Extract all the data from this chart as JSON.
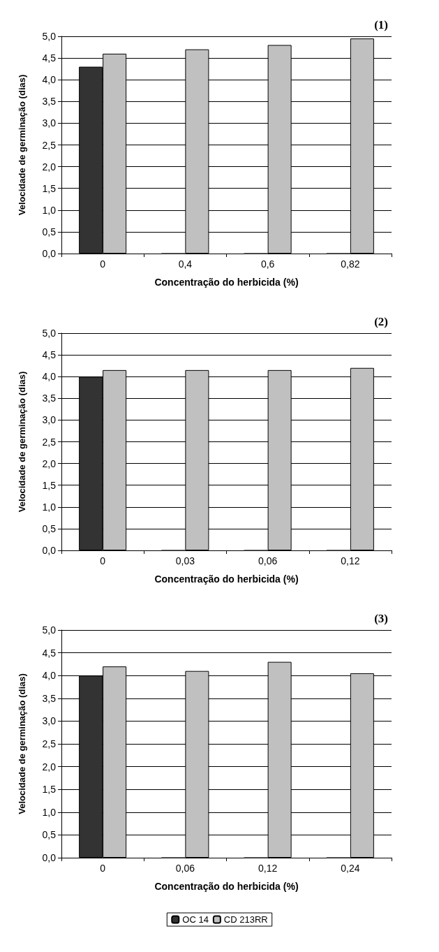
{
  "chart_data": [
    {
      "type": "bar",
      "title": "(1)",
      "xlabel": "Concentração do herbicida (%)",
      "ylabel": "Velocidade de germinação (dias)",
      "categories": [
        "0",
        "0,4",
        "0,6",
        "0,82"
      ],
      "series": [
        {
          "color": "#333333",
          "values": [
            4.3,
            0,
            0,
            0
          ]
        },
        {
          "color": "#c0c0c0",
          "values": [
            4.6,
            4.7,
            4.8,
            4.95
          ]
        }
      ],
      "ylim": [
        0,
        5
      ],
      "yticks": [
        {
          "value": 0,
          "label": "0,0"
        },
        {
          "value": 0.5,
          "label": "0,5"
        },
        {
          "value": 1,
          "label": "1,0"
        },
        {
          "value": 1.5,
          "label": "1,5"
        },
        {
          "value": 2,
          "label": "2,0"
        },
        {
          "value": 2.5,
          "label": "2,5"
        },
        {
          "value": 3,
          "label": "3,0"
        },
        {
          "value": 3.5,
          "label": "3,5"
        },
        {
          "value": 4,
          "label": "4,0"
        },
        {
          "value": 4.5,
          "label": "4,5"
        },
        {
          "value": 5,
          "label": "5,0"
        }
      ],
      "grid": "y",
      "legend": false
    },
    {
      "type": "bar",
      "title": "(2)",
      "xlabel": "Concentração do herbicida (%)",
      "ylabel": "Velocidade de germinação (dias)",
      "categories": [
        "0",
        "0,03",
        "0,06",
        "0,12"
      ],
      "series": [
        {
          "color": "#333333",
          "values": [
            4.0,
            0,
            0,
            0
          ]
        },
        {
          "color": "#c0c0c0",
          "values": [
            4.15,
            4.15,
            4.15,
            4.2
          ]
        }
      ],
      "ylim": [
        0,
        5
      ],
      "yticks": [
        {
          "value": 0,
          "label": "0,0"
        },
        {
          "value": 0.5,
          "label": "0,5"
        },
        {
          "value": 1,
          "label": "1,0"
        },
        {
          "value": 1.5,
          "label": "1,5"
        },
        {
          "value": 2,
          "label": "2,0"
        },
        {
          "value": 2.5,
          "label": "2,5"
        },
        {
          "value": 3,
          "label": "3,0"
        },
        {
          "value": 3.5,
          "label": "3,5"
        },
        {
          "value": 4,
          "label": "4,0"
        },
        {
          "value": 4.5,
          "label": "4,5"
        },
        {
          "value": 5,
          "label": "5,0"
        }
      ],
      "grid": "y",
      "legend": false
    },
    {
      "type": "bar",
      "title": "(3)",
      "xlabel": "Concentração do herbicida (%)",
      "ylabel": "Velocidade de germinação (dias)",
      "categories": [
        "0",
        "0,06",
        "0,12",
        "0,24"
      ],
      "series": [
        {
          "name": "OC 14",
          "color": "#333333",
          "values": [
            4.0,
            0,
            0,
            0
          ]
        },
        {
          "name": "CD 213RR",
          "color": "#c0c0c0",
          "values": [
            4.2,
            4.1,
            4.3,
            4.05
          ]
        }
      ],
      "ylim": [
        0,
        5
      ],
      "yticks": [
        {
          "value": 0,
          "label": "0,0"
        },
        {
          "value": 0.5,
          "label": "0,5"
        },
        {
          "value": 1,
          "label": "1,0"
        },
        {
          "value": 1.5,
          "label": "1,5"
        },
        {
          "value": 2,
          "label": "2,0"
        },
        {
          "value": 2.5,
          "label": "2,5"
        },
        {
          "value": 3,
          "label": "3,0"
        },
        {
          "value": 3.5,
          "label": "3,5"
        },
        {
          "value": 4,
          "label": "4,0"
        },
        {
          "value": 4.5,
          "label": "4,5"
        },
        {
          "value": 5,
          "label": "5,0"
        }
      ],
      "grid": "y",
      "legend": "bottom"
    }
  ]
}
